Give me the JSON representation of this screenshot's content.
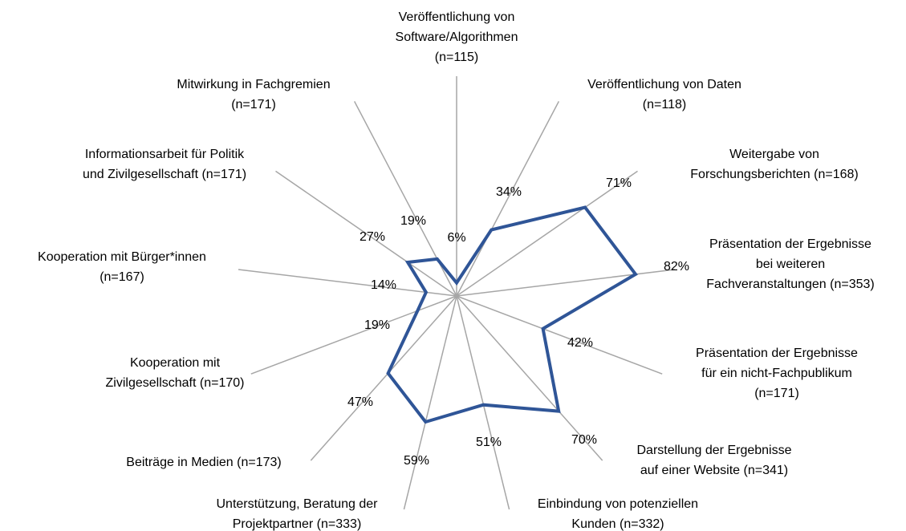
{
  "chart_data": {
    "type": "radar",
    "categories": [
      [
        "Veröffentlichung von",
        "Software/Algorithmen",
        "(n=115)"
      ],
      [
        "Veröffentlichung von Daten",
        "(n=118)"
      ],
      [
        "Weitergabe von",
        "Forschungsberichten (n=168)"
      ],
      [
        "Präsentation der Ergebnisse",
        "bei weiteren",
        "Fachveranstaltungen (n=353)"
      ],
      [
        "Präsentation der Ergebnisse",
        "für ein nicht-Fachpublikum",
        "(n=171)"
      ],
      [
        "Darstellung der Ergebnisse",
        "auf einer Website (n=341)"
      ],
      [
        "Einbindung von potenziellen",
        "Kunden (n=332)"
      ],
      [
        "Unterstützung, Beratung der",
        "Projektpartner (n=333)"
      ],
      [
        "Beiträge in Medien (n=173)"
      ],
      [
        "Kooperation mit",
        "Zivilgesellschaft (n=170)"
      ],
      [
        "Kooperation mit Bürger*innen",
        "(n=167)"
      ],
      [
        "Informationsarbeit für Politik",
        "und Zivilgesellschaft (n=171)"
      ],
      [
        "Mitwirkung in Fachgremien",
        "(n=171)"
      ]
    ],
    "values": [
      6,
      34,
      71,
      82,
      42,
      70,
      51,
      59,
      47,
      19,
      14,
      27,
      19
    ],
    "value_labels": [
      "6%",
      "34%",
      "71%",
      "82%",
      "42%",
      "70%",
      "51%",
      "59%",
      "47%",
      "19%",
      "14%",
      "27%",
      "19%"
    ],
    "color": "#2f5597",
    "ylim": [
      0,
      100
    ]
  }
}
